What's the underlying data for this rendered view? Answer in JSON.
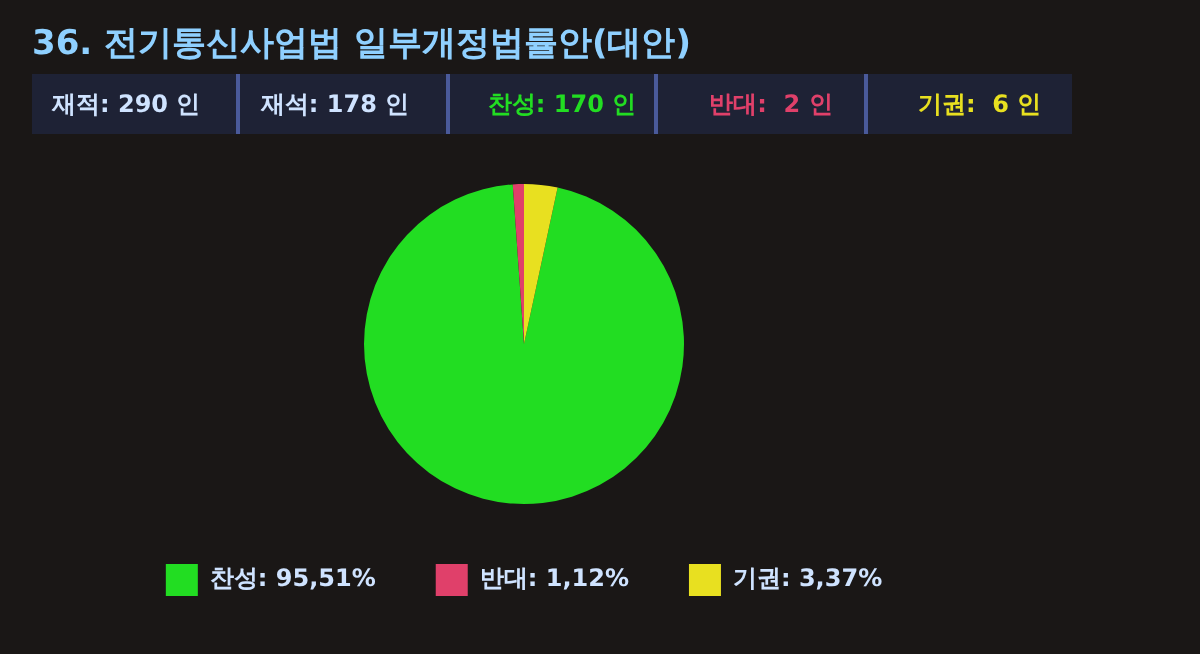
{
  "chart_data": {
    "type": "pie",
    "title": "36. 전기통신사업법 일부개정법률안(대안)",
    "categories": [
      "찬성",
      "반대",
      "기권"
    ],
    "values": [
      95.51,
      1.12,
      3.37
    ],
    "value_labels": [
      "95,51%",
      "1,12%",
      "3,37%"
    ],
    "colors": [
      "#22dd22",
      "#e0406a",
      "#e8e020"
    ],
    "annotations": [
      "재적: 290 인",
      "재석: 178 인",
      "찬성: 170 인",
      "반대:  2 인",
      "기권:  6 인"
    ],
    "legend": "bottom"
  }
}
